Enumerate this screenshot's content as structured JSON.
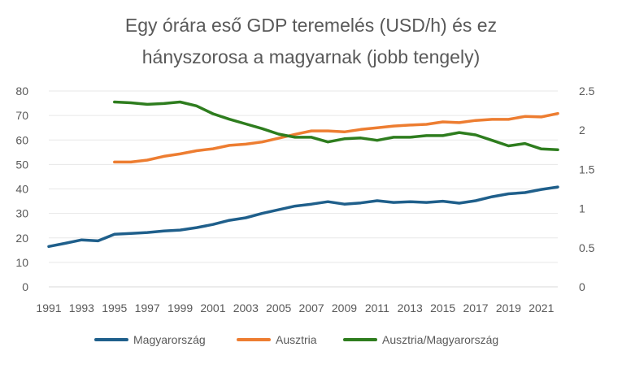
{
  "chart_data": {
    "type": "line",
    "title_line1": "Egy órára eső GDP teremelés (USD/h) és ez",
    "title_line2": "hányszorosa a magyarnak (jobb tengely)",
    "colors": {
      "Magyarország": "#1f5f8b",
      "Ausztria": "#ed7d31",
      "Ausztria/Magyarország": "#2e7d1e"
    },
    "x_ticks": [
      "1991",
      "1993",
      "1995",
      "1997",
      "1999",
      "2001",
      "2003",
      "2005",
      "2007",
      "2009",
      "2011",
      "2013",
      "2015",
      "2017",
      "2019",
      "2021"
    ],
    "x_range": [
      1991,
      2022
    ],
    "y_left": {
      "min": 0,
      "max": 80,
      "ticks": [
        "0",
        "10",
        "20",
        "30",
        "40",
        "50",
        "60",
        "70",
        "80"
      ]
    },
    "y_right": {
      "min": 0,
      "max": 2.5,
      "ticks": [
        "0",
        "0.5",
        "1",
        "1.5",
        "2",
        "2.5"
      ]
    },
    "series": [
      {
        "name": "Magyarország",
        "axis": "left",
        "x": [
          1991,
          1992,
          1993,
          1994,
          1995,
          1996,
          1997,
          1998,
          1999,
          2000,
          2001,
          2002,
          2003,
          2004,
          2005,
          2006,
          2007,
          2008,
          2009,
          2010,
          2011,
          2012,
          2013,
          2014,
          2015,
          2016,
          2017,
          2018,
          2019,
          2020,
          2021,
          2022
        ],
        "values": [
          16.5,
          17.8,
          19.2,
          18.8,
          21.5,
          21.8,
          22.2,
          22.8,
          23.2,
          24.2,
          25.5,
          27.2,
          28.2,
          30.0,
          31.5,
          33.0,
          33.8,
          34.8,
          33.8,
          34.3,
          35.2,
          34.5,
          34.8,
          34.5,
          35.0,
          34.2,
          35.2,
          36.8,
          38.0,
          38.5,
          39.8,
          40.8
        ]
      },
      {
        "name": "Ausztria",
        "axis": "left",
        "x": [
          1995,
          1996,
          1997,
          1998,
          1999,
          2000,
          2001,
          2002,
          2003,
          2004,
          2005,
          2006,
          2007,
          2008,
          2009,
          2010,
          2011,
          2012,
          2013,
          2014,
          2015,
          2016,
          2017,
          2018,
          2019,
          2020,
          2021,
          2022
        ],
        "values": [
          51.0,
          51.0,
          51.8,
          53.3,
          54.3,
          55.6,
          56.4,
          57.8,
          58.3,
          59.2,
          60.7,
          62.3,
          63.7,
          63.7,
          63.3,
          64.3,
          65.0,
          65.7,
          66.1,
          66.4,
          67.4,
          67.1,
          68.0,
          68.4,
          68.4,
          69.6,
          69.4,
          70.8
        ]
      },
      {
        "name": "Ausztria/Magyarország",
        "axis": "right",
        "x": [
          1995,
          1996,
          1997,
          1998,
          1999,
          2000,
          2001,
          2002,
          2003,
          2004,
          2005,
          2006,
          2007,
          2008,
          2009,
          2010,
          2011,
          2012,
          2013,
          2014,
          2015,
          2016,
          2017,
          2018,
          2019,
          2020,
          2021,
          2022
        ],
        "values": [
          2.36,
          2.35,
          2.33,
          2.34,
          2.36,
          2.31,
          2.21,
          2.14,
          2.08,
          2.02,
          1.95,
          1.91,
          1.91,
          1.85,
          1.89,
          1.9,
          1.87,
          1.91,
          1.91,
          1.93,
          1.93,
          1.97,
          1.94,
          1.87,
          1.8,
          1.83,
          1.76,
          1.75
        ]
      }
    ],
    "legend_position": "bottom",
    "grid": true
  }
}
